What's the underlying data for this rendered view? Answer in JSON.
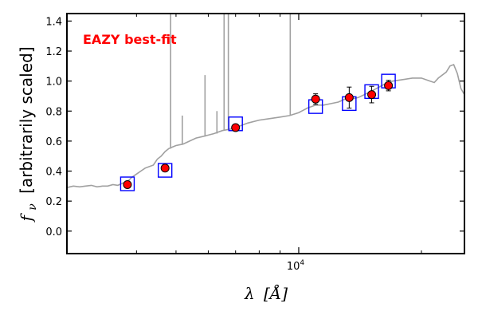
{
  "chart_data": {
    "type": "scatter",
    "title": "",
    "xlabel_symbol": "λ",
    "xlabel_unit": "[Å]",
    "ylabel_symbol": "f",
    "ylabel_sub": "ν",
    "ylabel_text": "[arbitrarily scaled]",
    "xscale": "log",
    "xlim": [
      2700,
      25500
    ],
    "ylim": [
      -0.15,
      1.45
    ],
    "yticks": [
      {
        "v": 0.0,
        "label": "0.0"
      },
      {
        "v": 0.2,
        "label": "0.2"
      },
      {
        "v": 0.4,
        "label": "0.4"
      },
      {
        "v": 0.6,
        "label": "0.6"
      },
      {
        "v": 0.8,
        "label": "0.8"
      },
      {
        "v": 1.0,
        "label": "1.0"
      },
      {
        "v": 1.2,
        "label": "1.2"
      },
      {
        "v": 1.4,
        "label": "1.4"
      }
    ],
    "xticks_major": [
      {
        "v": 10000,
        "base": "10",
        "exp": "4"
      }
    ],
    "xticks_minor": [
      4000,
      5000,
      6000,
      7000,
      8000,
      9000,
      20000
    ],
    "grid": false,
    "annotation": {
      "text": "EAZY best-fit",
      "color": "#ff0000"
    },
    "series": [
      {
        "kind": "template",
        "color": "#a0a0a0",
        "points": [
          [
            2700,
            0.29
          ],
          [
            2800,
            0.3
          ],
          [
            2900,
            0.295
          ],
          [
            3000,
            0.3
          ],
          [
            3100,
            0.305
          ],
          [
            3200,
            0.295
          ],
          [
            3300,
            0.3
          ],
          [
            3400,
            0.3
          ],
          [
            3500,
            0.31
          ],
          [
            3600,
            0.305
          ],
          [
            3700,
            0.32
          ],
          [
            3800,
            0.33
          ],
          [
            3900,
            0.36
          ],
          [
            4000,
            0.38
          ],
          [
            4100,
            0.4
          ],
          [
            4200,
            0.42
          ],
          [
            4300,
            0.43
          ],
          [
            4400,
            0.44
          ],
          [
            4500,
            0.48
          ],
          [
            4600,
            0.5
          ],
          [
            4700,
            0.53
          ],
          [
            4800,
            0.55
          ],
          [
            4900,
            0.56
          ],
          [
            5000,
            0.57
          ],
          [
            5200,
            0.58
          ],
          [
            5400,
            0.6
          ],
          [
            5600,
            0.62
          ],
          [
            5800,
            0.63
          ],
          [
            6000,
            0.64
          ],
          [
            6200,
            0.65
          ],
          [
            6500,
            0.67
          ],
          [
            6800,
            0.68
          ],
          [
            7000,
            0.69
          ],
          [
            7500,
            0.72
          ],
          [
            8000,
            0.74
          ],
          [
            8500,
            0.75
          ],
          [
            9000,
            0.76
          ],
          [
            9500,
            0.77
          ],
          [
            10000,
            0.79
          ],
          [
            10500,
            0.82
          ],
          [
            11000,
            0.84
          ],
          [
            11500,
            0.84
          ],
          [
            12000,
            0.85
          ],
          [
            12500,
            0.86
          ],
          [
            13000,
            0.88
          ],
          [
            13500,
            0.88
          ],
          [
            14000,
            0.89
          ],
          [
            14500,
            0.91
          ],
          [
            15000,
            0.93
          ],
          [
            15500,
            0.95
          ],
          [
            16000,
            0.97
          ],
          [
            16500,
            0.99
          ],
          [
            17000,
            1.0
          ],
          [
            18000,
            1.01
          ],
          [
            19000,
            1.02
          ],
          [
            20000,
            1.02
          ],
          [
            21000,
            1.0
          ],
          [
            21500,
            0.99
          ],
          [
            22000,
            1.02
          ],
          [
            23000,
            1.06
          ],
          [
            23500,
            1.1
          ],
          [
            24000,
            1.11
          ],
          [
            24500,
            1.05
          ],
          [
            25000,
            0.95
          ],
          [
            25500,
            0.91
          ]
        ],
        "lines": [
          [
            4850,
            0.55,
            1.45
          ],
          [
            5890,
            0.63,
            1.04
          ],
          [
            5180,
            0.58,
            0.77
          ],
          [
            6560,
            0.67,
            1.45
          ],
          [
            6720,
            0.68,
            1.45
          ],
          [
            6300,
            0.65,
            0.8
          ],
          [
            9532,
            0.77,
            1.45
          ]
        ]
      },
      {
        "kind": "model_photometry",
        "marker": "square",
        "color": "#0000ff",
        "points": [
          [
            3800,
            0.315
          ],
          [
            4700,
            0.405
          ],
          [
            7000,
            0.715
          ],
          [
            11000,
            0.83
          ],
          [
            13300,
            0.85
          ],
          [
            15100,
            0.93
          ],
          [
            16600,
            1.0
          ]
        ]
      },
      {
        "kind": "observed",
        "marker": "circle",
        "color": "#ff0000",
        "points": [
          {
            "x": 3800,
            "y": 0.31,
            "err": 0.02
          },
          {
            "x": 4700,
            "y": 0.42,
            "err": 0.015
          },
          {
            "x": 7000,
            "y": 0.69,
            "err": 0.015
          },
          {
            "x": 11000,
            "y": 0.88,
            "err": 0.035
          },
          {
            "x": 13300,
            "y": 0.89,
            "err": 0.07
          },
          {
            "x": 15100,
            "y": 0.91,
            "err": 0.055
          },
          {
            "x": 16600,
            "y": 0.97,
            "err": 0.035
          }
        ]
      }
    ]
  }
}
